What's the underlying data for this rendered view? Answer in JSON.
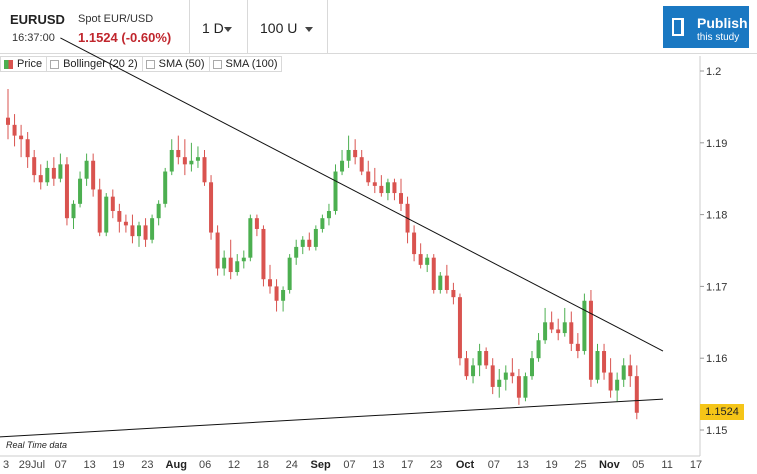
{
  "header": {
    "symbol": "EURUSD",
    "description": "Spot EUR/USD",
    "time": "16:37:00",
    "price": "1.1524 (-0.60%)",
    "interval": "1 D",
    "range": "100 U",
    "publish_title": "Publish",
    "publish_sub": "this study"
  },
  "legend": {
    "items": [
      "Price",
      "Bollinger (20 2)",
      "SMA (50)",
      "SMA (100)"
    ]
  },
  "footer": {
    "realtime_label": "Real Time data",
    "last_price": "1.1524"
  },
  "colors": {
    "up": "#4caf50",
    "down": "#d9534f",
    "price_negative": "#c0262d",
    "publish_bg": "#1a78c2",
    "last_price_tag": "#f5c518"
  },
  "chart_data": {
    "type": "candlestick",
    "title": "",
    "xlabel": "",
    "ylabel": "",
    "ylim": [
      1.1485,
      1.2
    ],
    "y_ticks": [
      1.15,
      1.16,
      1.17,
      1.18,
      1.19,
      1.2
    ],
    "y_tick_labels": [
      "1.15",
      "1.16",
      "1.17",
      "1.18",
      "1.19",
      "1.2"
    ],
    "x_tick_labels": [
      "3",
      "29Jul",
      "07",
      "13",
      "19",
      "23",
      "Aug",
      "06",
      "12",
      "18",
      "24",
      "Sep",
      "07",
      "13",
      "17",
      "23",
      "Oct",
      "07",
      "13",
      "19",
      "25",
      "Nov",
      "05",
      "11",
      "17"
    ],
    "x_tick_bold": [
      "Aug",
      "Sep",
      "Oct",
      "Nov"
    ],
    "legend_position": "top-left",
    "grid": false,
    "series": [
      {
        "name": "Price",
        "candles": [
          [
            1.1935,
            1.1975,
            1.1905,
            1.1925
          ],
          [
            1.1925,
            1.194,
            1.1895,
            1.191
          ],
          [
            1.191,
            1.1925,
            1.188,
            1.1905
          ],
          [
            1.1905,
            1.1915,
            1.1865,
            1.188
          ],
          [
            1.188,
            1.189,
            1.1845,
            1.1855
          ],
          [
            1.1855,
            1.187,
            1.1835,
            1.1845
          ],
          [
            1.1845,
            1.1875,
            1.184,
            1.1865
          ],
          [
            1.1865,
            1.188,
            1.184,
            1.185
          ],
          [
            1.185,
            1.1885,
            1.1845,
            1.187
          ],
          [
            1.187,
            1.188,
            1.1785,
            1.1795
          ],
          [
            1.1795,
            1.182,
            1.178,
            1.1815
          ],
          [
            1.1815,
            1.186,
            1.181,
            1.185
          ],
          [
            1.185,
            1.1885,
            1.184,
            1.1875
          ],
          [
            1.1875,
            1.1885,
            1.1825,
            1.1835
          ],
          [
            1.1835,
            1.185,
            1.177,
            1.1775
          ],
          [
            1.1775,
            1.183,
            1.177,
            1.1825
          ],
          [
            1.1825,
            1.1835,
            1.1795,
            1.1805
          ],
          [
            1.1805,
            1.1815,
            1.1775,
            1.179
          ],
          [
            1.179,
            1.18,
            1.1775,
            1.1785
          ],
          [
            1.1785,
            1.18,
            1.176,
            1.177
          ],
          [
            1.177,
            1.179,
            1.1755,
            1.1785
          ],
          [
            1.1785,
            1.1795,
            1.1755,
            1.1765
          ],
          [
            1.1765,
            1.18,
            1.176,
            1.1795
          ],
          [
            1.1795,
            1.182,
            1.1785,
            1.1815
          ],
          [
            1.1815,
            1.1865,
            1.181,
            1.186
          ],
          [
            1.186,
            1.1905,
            1.1855,
            1.189
          ],
          [
            1.189,
            1.191,
            1.187,
            1.188
          ],
          [
            1.188,
            1.1905,
            1.1855,
            1.187
          ],
          [
            1.187,
            1.19,
            1.186,
            1.1875
          ],
          [
            1.1875,
            1.1895,
            1.1865,
            1.188
          ],
          [
            1.188,
            1.189,
            1.184,
            1.1845
          ],
          [
            1.1845,
            1.1855,
            1.1765,
            1.1775
          ],
          [
            1.1775,
            1.1785,
            1.1715,
            1.1725
          ],
          [
            1.1725,
            1.175,
            1.1715,
            1.174
          ],
          [
            1.174,
            1.1765,
            1.171,
            1.172
          ],
          [
            1.172,
            1.1745,
            1.1715,
            1.1735
          ],
          [
            1.1735,
            1.175,
            1.1725,
            1.174
          ],
          [
            1.174,
            1.18,
            1.1735,
            1.1795
          ],
          [
            1.1795,
            1.18,
            1.177,
            1.178
          ],
          [
            1.178,
            1.1785,
            1.17,
            1.171
          ],
          [
            1.171,
            1.173,
            1.169,
            1.17
          ],
          [
            1.17,
            1.171,
            1.1665,
            1.168
          ],
          [
            1.168,
            1.17,
            1.1665,
            1.1695
          ],
          [
            1.1695,
            1.1745,
            1.169,
            1.174
          ],
          [
            1.174,
            1.1765,
            1.173,
            1.1755
          ],
          [
            1.1755,
            1.177,
            1.1745,
            1.1765
          ],
          [
            1.1765,
            1.1775,
            1.175,
            1.1755
          ],
          [
            1.1755,
            1.1785,
            1.175,
            1.178
          ],
          [
            1.178,
            1.18,
            1.1775,
            1.1795
          ],
          [
            1.1795,
            1.1815,
            1.1785,
            1.1805
          ],
          [
            1.1805,
            1.187,
            1.18,
            1.186
          ],
          [
            1.186,
            1.189,
            1.1855,
            1.1875
          ],
          [
            1.1875,
            1.191,
            1.1865,
            1.189
          ],
          [
            1.189,
            1.1905,
            1.187,
            1.188
          ],
          [
            1.188,
            1.189,
            1.1855,
            1.186
          ],
          [
            1.186,
            1.1875,
            1.184,
            1.1845
          ],
          [
            1.1845,
            1.1865,
            1.183,
            1.184
          ],
          [
            1.184,
            1.1855,
            1.1825,
            1.183
          ],
          [
            1.183,
            1.185,
            1.182,
            1.1845
          ],
          [
            1.1845,
            1.185,
            1.182,
            1.183
          ],
          [
            1.183,
            1.185,
            1.1805,
            1.1815
          ],
          [
            1.1815,
            1.1825,
            1.176,
            1.1775
          ],
          [
            1.1775,
            1.1785,
            1.1735,
            1.1745
          ],
          [
            1.1745,
            1.176,
            1.1725,
            1.173
          ],
          [
            1.173,
            1.1745,
            1.172,
            1.174
          ],
          [
            1.174,
            1.1745,
            1.169,
            1.1695
          ],
          [
            1.1695,
            1.172,
            1.169,
            1.1715
          ],
          [
            1.1715,
            1.173,
            1.169,
            1.1695
          ],
          [
            1.1695,
            1.1705,
            1.1675,
            1.1685
          ],
          [
            1.1685,
            1.169,
            1.159,
            1.16
          ],
          [
            1.16,
            1.161,
            1.157,
            1.1575
          ],
          [
            1.1575,
            1.16,
            1.1565,
            1.159
          ],
          [
            1.159,
            1.162,
            1.1575,
            1.161
          ],
          [
            1.161,
            1.1615,
            1.1585,
            1.159
          ],
          [
            1.159,
            1.16,
            1.155,
            1.156
          ],
          [
            1.156,
            1.1585,
            1.1545,
            1.157
          ],
          [
            1.157,
            1.159,
            1.1555,
            1.158
          ],
          [
            1.158,
            1.16,
            1.1565,
            1.1575
          ],
          [
            1.1575,
            1.1585,
            1.1535,
            1.1545
          ],
          [
            1.1545,
            1.158,
            1.154,
            1.1575
          ],
          [
            1.1575,
            1.161,
            1.157,
            1.16
          ],
          [
            1.16,
            1.1635,
            1.1595,
            1.1625
          ],
          [
            1.1625,
            1.167,
            1.162,
            1.165
          ],
          [
            1.165,
            1.1665,
            1.1635,
            1.164
          ],
          [
            1.164,
            1.1655,
            1.1625,
            1.1635
          ],
          [
            1.1635,
            1.167,
            1.163,
            1.165
          ],
          [
            1.165,
            1.1665,
            1.161,
            1.162
          ],
          [
            1.162,
            1.1635,
            1.16,
            1.161
          ],
          [
            1.161,
            1.169,
            1.1605,
            1.168
          ],
          [
            1.168,
            1.1695,
            1.156,
            1.157
          ],
          [
            1.157,
            1.162,
            1.1565,
            1.161
          ],
          [
            1.161,
            1.162,
            1.157,
            1.158
          ],
          [
            1.158,
            1.16,
            1.1545,
            1.1555
          ],
          [
            1.1555,
            1.158,
            1.154,
            1.157
          ],
          [
            1.157,
            1.16,
            1.156,
            1.159
          ],
          [
            1.159,
            1.1605,
            1.156,
            1.1575
          ],
          [
            1.1575,
            1.159,
            1.1515,
            1.1524
          ]
        ]
      }
    ],
    "trendlines": [
      {
        "name": "resistance",
        "from": [
          1.2046,
          8
        ],
        "to": [
          1.161,
          100
        ]
      },
      {
        "name": "support",
        "from": [
          1.149,
          -2
        ],
        "to": [
          1.1543,
          100
        ]
      }
    ]
  }
}
